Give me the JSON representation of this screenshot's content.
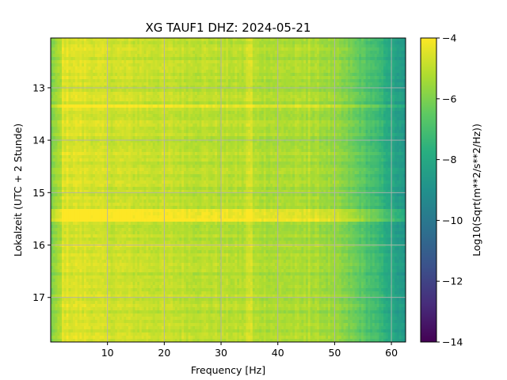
{
  "chart_data": {
    "type": "heatmap",
    "title": "XG TAUF1  DHZ: 2024-05-21",
    "xlabel": "Frequency [Hz]",
    "ylabel": "Lokalzeit (UTC + 2 Stunde)",
    "xlim": [
      0,
      62.5
    ],
    "ylim": [
      17.85,
      12.05
    ],
    "xticks": [
      10,
      20,
      30,
      40,
      50,
      60
    ],
    "yticks": [
      13,
      14,
      15,
      16,
      17
    ],
    "grid": true,
    "colormap": "viridis",
    "colorbar": {
      "label": "Log10(Sqrt(m**2/s**2/Hz))",
      "range": [
        -14,
        -4
      ],
      "ticks": [
        -4,
        -6,
        -8,
        -10,
        -12,
        -14
      ],
      "tick_labels": [
        "−4",
        "−6",
        "−8",
        "−10",
        "−12",
        "−14"
      ]
    },
    "features": {
      "base_level_low_freq": -4.6,
      "base_level_high_freq": -8.5,
      "rolloff_start_hz": 47,
      "strong_band_hours": [
        15.3,
        15.55
      ],
      "strong_lines_hz": [
        34.5,
        35.2,
        45.5
      ]
    }
  }
}
